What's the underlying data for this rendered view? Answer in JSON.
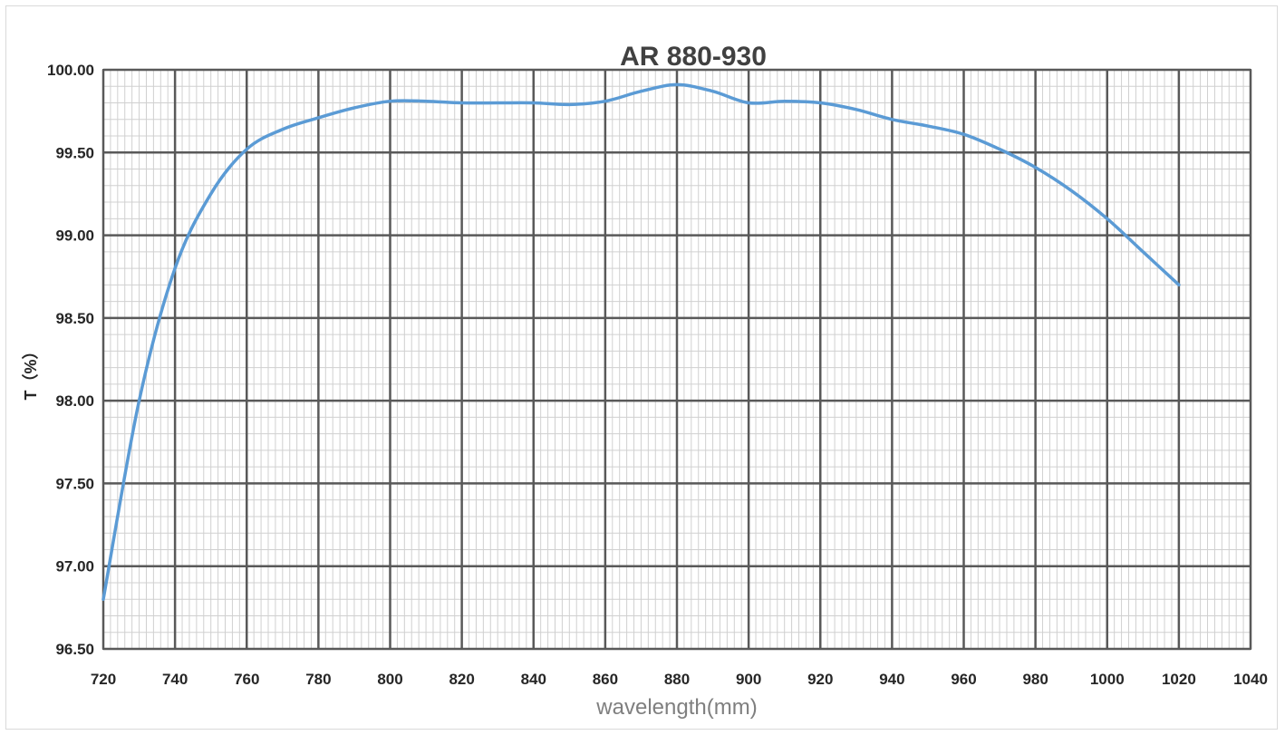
{
  "chart_data": {
    "type": "line",
    "title": "AR 880-930",
    "xlabel": "wavelength(mm)",
    "ylabel": "T（%）",
    "xlim": [
      720,
      1040
    ],
    "ylim": [
      96.5,
      100.0
    ],
    "x_ticks": [
      720,
      740,
      760,
      780,
      800,
      820,
      840,
      860,
      880,
      900,
      920,
      940,
      960,
      980,
      1000,
      1020,
      1040
    ],
    "x_tick_labels": [
      "720",
      "740",
      "760",
      "780",
      "800",
      "820",
      "840",
      "860",
      "880",
      "900",
      "920",
      "940",
      "960",
      "980",
      "1000",
      "1020",
      "1040"
    ],
    "y_ticks": [
      96.5,
      97.0,
      97.5,
      98.0,
      98.5,
      99.0,
      99.5,
      100.0
    ],
    "y_tick_labels": [
      "96.50",
      "97.00",
      "97.50",
      "98.00",
      "98.50",
      "99.00",
      "99.50",
      "100.00"
    ],
    "grid": true,
    "minor_grid": true,
    "legend": "none",
    "series": [
      {
        "color": "#5b9bd5",
        "x": [
          720,
          730,
          740,
          750,
          760,
          770,
          780,
          790,
          800,
          810,
          820,
          830,
          840,
          850,
          860,
          870,
          880,
          890,
          900,
          910,
          920,
          930,
          940,
          950,
          960,
          970,
          980,
          990,
          1000,
          1010,
          1020
        ],
        "y": [
          96.8,
          98.0,
          98.8,
          99.25,
          99.52,
          99.64,
          99.71,
          99.77,
          99.81,
          99.81,
          99.8,
          99.8,
          99.8,
          99.79,
          99.81,
          99.87,
          99.91,
          99.87,
          99.8,
          99.81,
          99.8,
          99.76,
          99.7,
          99.66,
          99.61,
          99.52,
          99.41,
          99.27,
          99.1,
          98.9,
          98.7
        ]
      }
    ]
  }
}
